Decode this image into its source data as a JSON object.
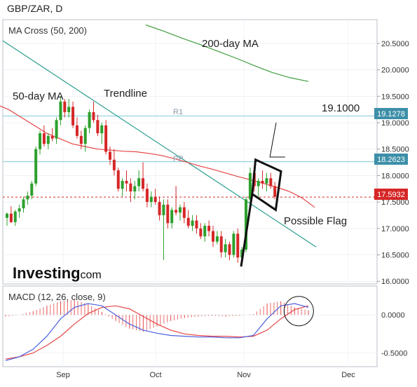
{
  "header": {
    "symbol_title": "GBP/ZAR, D"
  },
  "chart_data": [
    {
      "type": "candlestick",
      "title": "GBP/ZAR, D",
      "indicator_label": "MA Cross (50, 200)",
      "x_ticks": [
        "Sep",
        "Oct",
        "Nov",
        "Dec"
      ],
      "y_ticks": [
        "20.5000",
        "20.0000",
        "19.5000",
        "19.0000",
        "18.5000",
        "18.0000",
        "17.5000",
        "17.0000",
        "16.5000",
        "16.0000"
      ],
      "ylim": [
        15.95,
        20.95
      ],
      "grid": true,
      "colors": {
        "up": "#2ca02c",
        "down": "#d62728",
        "trendline": "#2a9d8f",
        "ma50": "#e64545",
        "ma200": "#3e9e3e",
        "level": "#7fc8d8",
        "current": "#d62728"
      },
      "candles": [
        [
          17.2,
          17.3,
          17.05,
          17.28
        ],
        [
          17.28,
          17.42,
          17.1,
          17.12
        ],
        [
          17.12,
          17.35,
          17.05,
          17.32
        ],
        [
          17.32,
          17.45,
          17.2,
          17.38
        ],
        [
          17.38,
          17.6,
          17.3,
          17.55
        ],
        [
          17.55,
          17.7,
          17.45,
          17.62
        ],
        [
          17.62,
          17.9,
          17.55,
          17.85
        ],
        [
          17.85,
          18.55,
          17.8,
          18.5
        ],
        [
          18.5,
          18.85,
          18.4,
          18.8
        ],
        [
          18.8,
          18.95,
          18.55,
          18.6
        ],
        [
          18.6,
          18.8,
          18.5,
          18.75
        ],
        [
          18.75,
          18.9,
          18.65,
          18.7
        ],
        [
          18.7,
          19.1,
          18.6,
          19.05
        ],
        [
          19.05,
          19.5,
          18.95,
          19.4
        ],
        [
          19.4,
          19.45,
          19.1,
          19.2
        ],
        [
          19.2,
          19.45,
          19.1,
          19.3
        ],
        [
          19.3,
          19.4,
          18.9,
          18.95
        ],
        [
          18.95,
          19.1,
          18.7,
          18.75
        ],
        [
          18.75,
          18.85,
          18.5,
          18.6
        ],
        [
          18.6,
          18.95,
          18.45,
          18.9
        ],
        [
          18.9,
          19.25,
          18.8,
          19.2
        ],
        [
          19.2,
          19.4,
          19.0,
          19.05
        ],
        [
          19.05,
          19.15,
          18.75,
          18.8
        ],
        [
          18.8,
          19.0,
          18.6,
          18.95
        ],
        [
          18.95,
          19.05,
          18.4,
          18.45
        ],
        [
          18.45,
          18.55,
          18.2,
          18.3
        ],
        [
          18.3,
          18.5,
          18.0,
          18.1
        ],
        [
          18.1,
          18.15,
          17.7,
          17.75
        ],
        [
          17.75,
          17.95,
          17.6,
          17.9
        ],
        [
          17.9,
          18.1,
          17.7,
          17.85
        ],
        [
          17.85,
          17.95,
          17.5,
          17.7
        ],
        [
          17.7,
          17.9,
          17.55,
          17.8
        ],
        [
          17.8,
          18.1,
          17.7,
          17.95
        ],
        [
          17.95,
          18.25,
          17.7,
          17.75
        ],
        [
          17.75,
          17.85,
          17.4,
          17.5
        ],
        [
          17.5,
          17.7,
          17.4,
          17.6
        ],
        [
          17.6,
          17.75,
          17.45,
          17.5
        ],
        [
          17.5,
          17.6,
          17.15,
          17.25
        ],
        [
          17.25,
          17.55,
          16.4,
          17.45
        ],
        [
          17.45,
          17.55,
          17.0,
          17.1
        ],
        [
          17.1,
          17.4,
          17.0,
          17.35
        ],
        [
          17.35,
          17.8,
          17.25,
          17.3
        ],
        [
          17.3,
          17.45,
          17.15,
          17.4
        ],
        [
          17.4,
          17.5,
          17.1,
          17.2
        ],
        [
          17.2,
          17.35,
          17.0,
          17.05
        ],
        [
          17.05,
          17.25,
          16.95,
          17.15
        ],
        [
          17.15,
          17.25,
          16.9,
          17.0
        ],
        [
          17.0,
          17.1,
          16.8,
          16.85
        ],
        [
          16.85,
          17.1,
          16.75,
          17.05
        ],
        [
          17.05,
          17.15,
          16.85,
          16.95
        ],
        [
          16.95,
          17.05,
          16.65,
          16.75
        ],
        [
          16.75,
          16.95,
          16.7,
          16.85
        ],
        [
          16.85,
          16.95,
          16.45,
          16.55
        ],
        [
          16.55,
          16.8,
          16.45,
          16.7
        ],
        [
          16.7,
          16.75,
          16.4,
          16.5
        ],
        [
          16.5,
          16.95,
          16.45,
          16.9
        ],
        [
          16.9,
          17.0,
          16.35,
          16.45
        ],
        [
          16.45,
          16.65,
          16.3,
          16.6
        ],
        [
          16.6,
          17.6,
          16.55,
          17.55
        ],
        [
          17.55,
          18.15,
          17.45,
          18.05
        ],
        [
          18.05,
          18.15,
          17.7,
          17.8
        ],
        [
          17.8,
          17.95,
          17.6,
          17.9
        ],
        [
          17.9,
          18.1,
          17.75,
          17.85
        ],
        [
          17.85,
          18.05,
          17.7,
          17.95
        ],
        [
          17.95,
          18.05,
          17.75,
          17.8
        ],
        [
          17.8,
          17.88,
          17.55,
          17.6
        ]
      ],
      "ma50": [
        19.35,
        19.25,
        19.1,
        18.95,
        18.8,
        18.7,
        18.6,
        18.55,
        18.5,
        18.48,
        18.46,
        18.45,
        18.42,
        18.38,
        18.32,
        18.25,
        18.18,
        18.12,
        18.05,
        17.98,
        17.92,
        17.85,
        17.78,
        17.7,
        17.58,
        17.4
      ],
      "ma200": [
        20.85,
        20.73,
        20.6,
        20.48,
        20.35,
        20.22,
        20.08,
        19.95,
        19.85,
        19.78
      ],
      "trendline": [
        [
          0,
          20.55
        ],
        [
          75,
          16.65
        ]
      ],
      "levels": [
        {
          "label": "R1",
          "value": 19.1278,
          "value_text": "19.1278"
        },
        {
          "label": "PP",
          "value": 18.2623,
          "value_text": "18.2623"
        }
      ],
      "current_price": {
        "value": 17.5932,
        "value_text": "17.5932"
      },
      "annotations": [
        "50-day MA",
        "Trendline",
        "200-day MA",
        "19.1000",
        "Possible Flag"
      ],
      "flag_polygon": [
        [
          60.3,
          18.3
        ],
        [
          66.5,
          18.08
        ],
        [
          65.2,
          17.35
        ],
        [
          59.5,
          17.65
        ]
      ],
      "flagpole": [
        [
          59.5,
          17.65
        ],
        [
          56.8,
          16.28
        ]
      ],
      "callout_line": [
        [
          67.5,
          18.35
        ],
        [
          63.8,
          18.35
        ],
        [
          65.3,
          19.0
        ]
      ],
      "branding": {
        "word": "Investing",
        "domain": ".com"
      }
    },
    {
      "type": "macd",
      "indicator_label": "MACD (12, 26, close, 9)",
      "y_ticks": [
        "0.0000",
        "-0.5000"
      ],
      "ylim": [
        -0.68,
        0.38
      ],
      "grid": true,
      "colors": {
        "macd": "#4a5fe0",
        "signal": "#e64545",
        "histogram": "#e64545"
      },
      "macd": [
        -0.6,
        -0.55,
        -0.45,
        -0.28,
        -0.05,
        0.1,
        0.15,
        0.12,
        0.0,
        -0.12,
        -0.2,
        -0.24,
        -0.27,
        -0.28,
        -0.29,
        -0.29,
        -0.3,
        -0.3,
        -0.27,
        -0.05,
        0.12,
        0.15,
        0.1
      ],
      "signal": [
        -0.58,
        -0.55,
        -0.5,
        -0.4,
        -0.28,
        -0.12,
        0.02,
        0.1,
        0.12,
        0.08,
        -0.02,
        -0.12,
        -0.2,
        -0.25,
        -0.27,
        -0.28,
        -0.28,
        -0.29,
        -0.28,
        -0.2,
        -0.05,
        0.07,
        0.12
      ],
      "histogram": [
        -0.02,
        0.0,
        0.05,
        0.12,
        0.18,
        0.2,
        0.14,
        0.04,
        -0.08,
        -0.18,
        -0.22,
        -0.15,
        -0.08,
        -0.04,
        -0.02,
        -0.01,
        -0.02,
        -0.01,
        0.01,
        0.15,
        0.18,
        0.1,
        0.06
      ]
    }
  ]
}
